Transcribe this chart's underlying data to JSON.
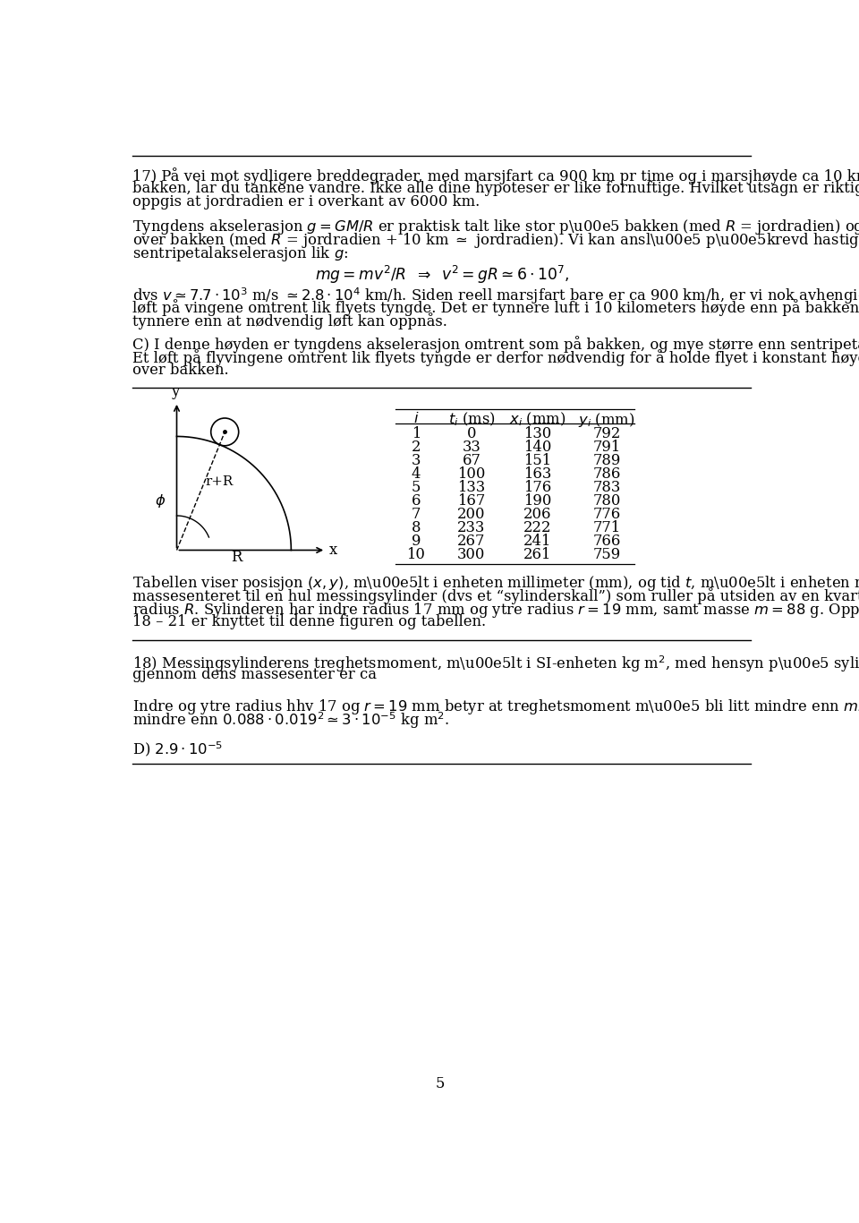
{
  "page_number": "5",
  "background_color": "#ffffff",
  "text_color": "#000000",
  "table_data": [
    [
      1,
      0,
      130,
      792
    ],
    [
      2,
      33,
      140,
      791
    ],
    [
      3,
      67,
      151,
      789
    ],
    [
      4,
      100,
      163,
      786
    ],
    [
      5,
      133,
      176,
      783
    ],
    [
      6,
      167,
      190,
      780
    ],
    [
      7,
      200,
      206,
      776
    ],
    [
      8,
      233,
      222,
      771
    ],
    [
      9,
      267,
      241,
      766
    ],
    [
      10,
      300,
      261,
      759
    ]
  ]
}
